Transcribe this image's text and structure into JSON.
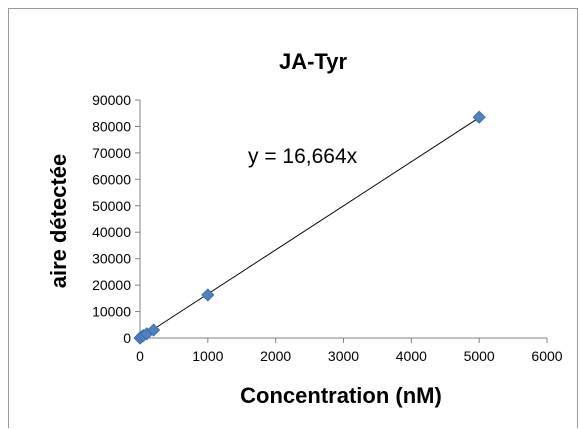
{
  "chart_data": {
    "type": "scatter",
    "title": "JA-Tyr",
    "xlabel": "Concentration (nM)",
    "ylabel": "aire détectée",
    "xlim": [
      0,
      6000
    ],
    "ylim": [
      0,
      90000
    ],
    "xticks": [
      "0",
      "1000",
      "2000",
      "3000",
      "4000",
      "5000",
      "6000"
    ],
    "yticks": [
      "0",
      "10000",
      "20000",
      "30000",
      "40000",
      "50000",
      "60000",
      "70000",
      "80000",
      "90000"
    ],
    "grid": false,
    "legend": "none",
    "series": [
      {
        "points": [
          {
            "x": 0,
            "y": 0
          },
          {
            "x": 20,
            "y": 400
          },
          {
            "x": 50,
            "y": 900
          },
          {
            "x": 100,
            "y": 1600
          },
          {
            "x": 200,
            "y": 3000
          },
          {
            "x": 1000,
            "y": 16300
          },
          {
            "x": 5000,
            "y": 83500
          }
        ],
        "color": "#4f81bd"
      }
    ],
    "trendline": {
      "slope": 16.664,
      "x_range": [
        0,
        5000
      ],
      "equation": "y = 16,664x",
      "color": "#000000"
    }
  }
}
